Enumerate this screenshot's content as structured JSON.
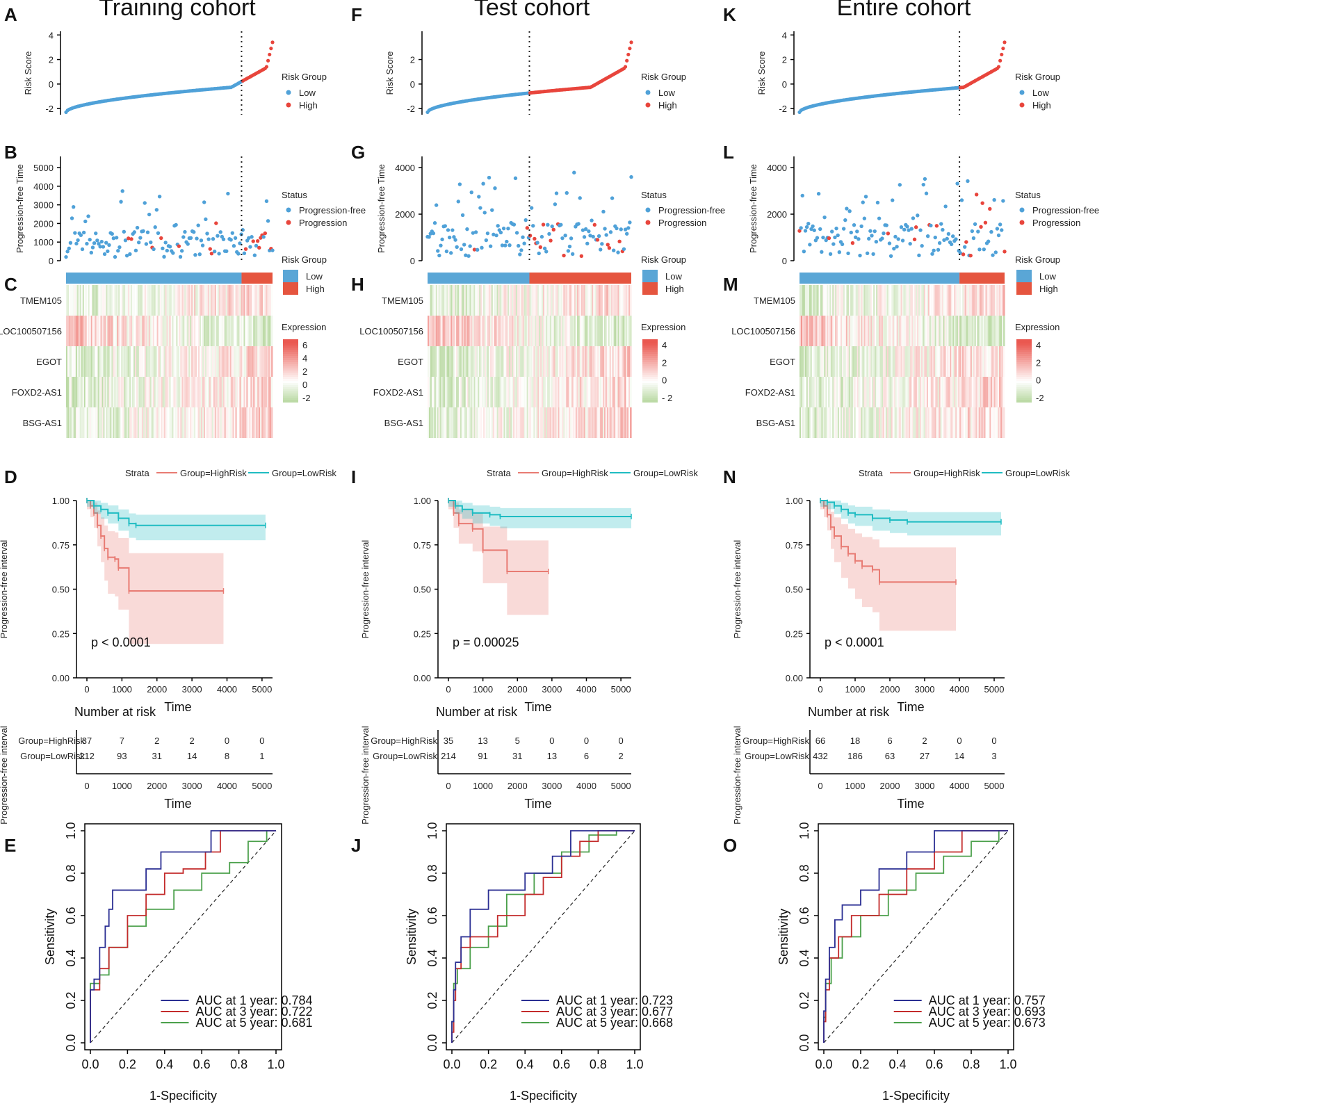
{
  "panel_letters": {
    "train": [
      "A",
      "B",
      "C",
      "D",
      "E"
    ],
    "test": [
      "F",
      "G",
      "H",
      "I",
      "J"
    ],
    "entire": [
      "K",
      "L",
      "M",
      "N",
      "O"
    ]
  },
  "colors": {
    "low": "#4fa1d8",
    "high": "#e8453c",
    "hr": "#e87b73",
    "lr": "#1fbcc2",
    "lowbar": "#5aa6d6",
    "highbar": "#e5553f",
    "roc1": "#2b2f93",
    "roc3": "#c32b2b",
    "roc5": "#4ba04b"
  },
  "chart_data": [
    {
      "type": "composite",
      "cohort": "train",
      "title": "Training cohort",
      "risk_score": {
        "ylabel": "Risk Score",
        "yticks": [
          -2,
          0,
          2,
          4
        ],
        "cutoff_frac": 0.85,
        "legend_title": "Risk Group",
        "legend_items": [
          "Low",
          "High"
        ]
      },
      "pfs_time": {
        "ylabel": "Progression-free Time",
        "yticks": [
          0,
          1000,
          2000,
          3000,
          4000,
          5000
        ],
        "legend_title": "Status",
        "legend_items": [
          "Progression-free",
          "Progression"
        ]
      },
      "heatmap": {
        "genes": [
          "TMEM105",
          "LOC100507156",
          "EGOT",
          "FOXD2-AS1",
          "BSG-AS1"
        ],
        "group_legend_title": "Risk Group",
        "group_items": [
          "Low",
          "High"
        ],
        "expr_title": "Expression",
        "expr_ticks": [
          "6",
          "4",
          "2",
          "0",
          "-2"
        ]
      },
      "km": {
        "strata_label": "Strata",
        "strata": [
          "Group=HighRisk",
          "Group=LowRisk"
        ],
        "ylabel": "Progression-free interval",
        "xlabel": "Time",
        "yticks": [
          "1.00",
          "0.75",
          "0.50",
          "0.25",
          "0.00"
        ],
        "xticks": [
          0,
          1000,
          2000,
          3000,
          4000,
          5000
        ],
        "pvalue": "p < 0.0001",
        "high": [
          [
            0,
            1
          ],
          [
            100,
            0.97
          ],
          [
            200,
            0.93
          ],
          [
            300,
            0.86
          ],
          [
            400,
            0.8
          ],
          [
            500,
            0.73
          ],
          [
            600,
            0.68
          ],
          [
            800,
            0.67
          ],
          [
            900,
            0.62
          ],
          [
            1200,
            0.49
          ],
          [
            3900,
            0.49
          ]
        ],
        "low": [
          [
            0,
            1
          ],
          [
            200,
            0.97
          ],
          [
            400,
            0.95
          ],
          [
            600,
            0.93
          ],
          [
            900,
            0.9
          ],
          [
            1200,
            0.87
          ],
          [
            1400,
            0.86
          ],
          [
            5100,
            0.86
          ]
        ]
      },
      "risk_table": {
        "title": "Number at risk",
        "rows": [
          {
            "label": "Group=HighRisk",
            "values": [
              "37",
              "7",
              "2",
              "2",
              "0",
              "0"
            ]
          },
          {
            "label": "Group=LowRisk",
            "values": [
              "212",
              "93",
              "31",
              "14",
              "8",
              "1"
            ]
          }
        ]
      },
      "roc": {
        "xlabel": "1-Specificity",
        "ylabel": "Sensitivity",
        "ticks": [
          "0.0",
          "0.2",
          "0.4",
          "0.6",
          "0.8",
          "1.0"
        ],
        "legend": [
          "AUC at 1 year: 0.784",
          "AUC at 3 year: 0.722",
          "AUC at 5 year: 0.681"
        ],
        "y1": [
          [
            0,
            0
          ],
          [
            0,
            0.2
          ],
          [
            0.02,
            0.25
          ],
          [
            0.05,
            0.3
          ],
          [
            0.08,
            0.45
          ],
          [
            0.1,
            0.55
          ],
          [
            0.12,
            0.63
          ],
          [
            0.3,
            0.72
          ],
          [
            0.38,
            0.82
          ],
          [
            0.65,
            0.9
          ],
          [
            0.66,
            1
          ],
          [
            1,
            1
          ]
        ],
        "y3": [
          [
            0,
            0
          ],
          [
            0,
            0.15
          ],
          [
            0.05,
            0.25
          ],
          [
            0.1,
            0.35
          ],
          [
            0.2,
            0.45
          ],
          [
            0.3,
            0.6
          ],
          [
            0.4,
            0.7
          ],
          [
            0.5,
            0.8
          ],
          [
            0.62,
            0.82
          ],
          [
            0.7,
            0.9
          ],
          [
            0.8,
            1
          ],
          [
            1,
            1
          ]
        ],
        "y5": [
          [
            0,
            0
          ],
          [
            0,
            0.18
          ],
          [
            0.05,
            0.28
          ],
          [
            0.1,
            0.32
          ],
          [
            0.2,
            0.45
          ],
          [
            0.3,
            0.55
          ],
          [
            0.45,
            0.63
          ],
          [
            0.6,
            0.72
          ],
          [
            0.75,
            0.8
          ],
          [
            0.85,
            0.85
          ],
          [
            0.95,
            0.95
          ],
          [
            1,
            1
          ]
        ]
      }
    },
    {
      "type": "composite",
      "cohort": "test",
      "title": "Test cohort",
      "risk_score": {
        "ylabel": "Risk Score",
        "yticks": [
          -2,
          0,
          2
        ],
        "cutoff_frac": 0.5,
        "legend_title": "Risk Group",
        "legend_items": [
          "Low",
          "High"
        ]
      },
      "pfs_time": {
        "ylabel": "Progression-free Time",
        "yticks": [
          0,
          2000,
          4000
        ],
        "legend_title": "Status",
        "legend_items": [
          "Progression-free",
          "Progression"
        ]
      },
      "heatmap": {
        "genes": [
          "TMEM105",
          "LOC100507156",
          "EGOT",
          "FOXD2-AS1",
          "BSG-AS1"
        ],
        "group_legend_title": "Risk Group",
        "group_items": [
          "Low",
          "High"
        ],
        "expr_title": "Expression",
        "expr_ticks": [
          "4",
          "2",
          "0",
          "- 2"
        ]
      },
      "km": {
        "strata_label": "Strata",
        "strata": [
          "Group=HighRisk",
          "Group=LowRisk"
        ],
        "ylabel": "Progression-free interval",
        "xlabel": "Time",
        "yticks": [
          "1.00",
          "0.75",
          "0.50",
          "0.25",
          "0.00"
        ],
        "xticks": [
          0,
          1000,
          2000,
          3000,
          4000,
          5000
        ],
        "pvalue": "p = 0.00025",
        "high": [
          [
            0,
            1
          ],
          [
            150,
            0.93
          ],
          [
            300,
            0.87
          ],
          [
            700,
            0.84
          ],
          [
            1000,
            0.72
          ],
          [
            1700,
            0.6
          ],
          [
            2900,
            0.6
          ]
        ],
        "low": [
          [
            0,
            1
          ],
          [
            200,
            0.97
          ],
          [
            400,
            0.95
          ],
          [
            700,
            0.93
          ],
          [
            1200,
            0.92
          ],
          [
            1500,
            0.91
          ],
          [
            5300,
            0.91
          ]
        ]
      },
      "risk_table": {
        "title": "Number at risk",
        "rows": [
          {
            "label": "Group=HighRisk",
            "values": [
              "35",
              "13",
              "5",
              "0",
              "0",
              "0"
            ]
          },
          {
            "label": "Group=LowRisk",
            "values": [
              "214",
              "91",
              "31",
              "13",
              "6",
              "2"
            ]
          }
        ]
      },
      "roc": {
        "xlabel": "1-Specificity",
        "ylabel": "Sensitivity",
        "ticks": [
          "0.0",
          "0.2",
          "0.4",
          "0.6",
          "0.8",
          "1.0"
        ],
        "legend": [
          "AUC at 1 year: 0.723",
          "AUC at 3 year: 0.677",
          "AUC at 5 year: 0.668"
        ],
        "y1": [
          [
            0,
            0
          ],
          [
            0.01,
            0.1
          ],
          [
            0.02,
            0.25
          ],
          [
            0.05,
            0.38
          ],
          [
            0.1,
            0.5
          ],
          [
            0.2,
            0.63
          ],
          [
            0.4,
            0.72
          ],
          [
            0.55,
            0.8
          ],
          [
            0.65,
            0.88
          ],
          [
            0.75,
            1
          ],
          [
            1,
            1
          ]
        ],
        "y3": [
          [
            0,
            0
          ],
          [
            0.01,
            0.05
          ],
          [
            0.02,
            0.2
          ],
          [
            0.05,
            0.35
          ],
          [
            0.1,
            0.45
          ],
          [
            0.25,
            0.5
          ],
          [
            0.4,
            0.6
          ],
          [
            0.5,
            0.7
          ],
          [
            0.6,
            0.78
          ],
          [
            0.7,
            0.88
          ],
          [
            0.8,
            0.95
          ],
          [
            1,
            1
          ]
        ],
        "y5": [
          [
            0,
            0
          ],
          [
            0.01,
            0.1
          ],
          [
            0.03,
            0.28
          ],
          [
            0.1,
            0.35
          ],
          [
            0.2,
            0.45
          ],
          [
            0.3,
            0.55
          ],
          [
            0.45,
            0.7
          ],
          [
            0.6,
            0.8
          ],
          [
            0.75,
            0.9
          ],
          [
            0.9,
            0.98
          ],
          [
            1,
            1
          ]
        ]
      }
    },
    {
      "type": "composite",
      "cohort": "entire",
      "title": "Entire cohort",
      "risk_score": {
        "ylabel": "Risk Score",
        "yticks": [
          -2,
          0,
          2,
          4
        ],
        "cutoff_frac": 0.78,
        "legend_title": "Risk  Group",
        "legend_items": [
          "Low",
          "High"
        ]
      },
      "pfs_time": {
        "ylabel": "Progression-free Time",
        "yticks": [
          0,
          2000,
          4000
        ],
        "legend_title": "Status",
        "legend_items": [
          "Progression-free",
          "Progression"
        ]
      },
      "heatmap": {
        "genes": [
          "TMEM105",
          "LOC100507156",
          "EGOT",
          "FOXD2-AS1",
          "BSG-AS1"
        ],
        "group_legend_title": "Risk Group",
        "group_items": [
          "Low",
          "High"
        ],
        "expr_title": "Expression",
        "expr_ticks": [
          "4",
          "2",
          "0",
          "-2"
        ]
      },
      "km": {
        "strata_label": "Strata",
        "strata": [
          "Group=HighRisk",
          "Group=LowRisk"
        ],
        "ylabel": "Progression-free interval",
        "xlabel": "Time",
        "yticks": [
          "1.00",
          "0.75",
          "0.50",
          "0.25",
          "0.00"
        ],
        "xticks": [
          0,
          1000,
          2000,
          3000,
          4000,
          5000
        ],
        "pvalue": "p < 0.0001",
        "high": [
          [
            0,
            1
          ],
          [
            100,
            0.97
          ],
          [
            200,
            0.92
          ],
          [
            300,
            0.85
          ],
          [
            400,
            0.8
          ],
          [
            600,
            0.74
          ],
          [
            800,
            0.7
          ],
          [
            1000,
            0.66
          ],
          [
            1200,
            0.63
          ],
          [
            1500,
            0.61
          ],
          [
            1700,
            0.54
          ],
          [
            3900,
            0.54
          ]
        ],
        "low": [
          [
            0,
            1
          ],
          [
            200,
            0.99
          ],
          [
            400,
            0.97
          ],
          [
            600,
            0.95
          ],
          [
            800,
            0.93
          ],
          [
            1000,
            0.92
          ],
          [
            1500,
            0.9
          ],
          [
            2000,
            0.89
          ],
          [
            2500,
            0.88
          ],
          [
            5200,
            0.88
          ]
        ]
      },
      "risk_table": {
        "title": "Number at risk",
        "rows": [
          {
            "label": "Group=HighRisk",
            "values": [
              "66",
              "18",
              "6",
              "2",
              "0",
              "0"
            ]
          },
          {
            "label": "Group=LowRisk",
            "values": [
              "432",
              "186",
              "63",
              "27",
              "14",
              "3"
            ]
          }
        ]
      },
      "roc": {
        "xlabel": "1-Specificity",
        "ylabel": "Sensitivity",
        "ticks": [
          "0.0",
          "0.2",
          "0.4",
          "0.6",
          "0.8",
          "1.0"
        ],
        "legend": [
          "AUC at 1 year: 0.757",
          "AUC at 3 year: 0.693",
          "AUC at 5 year: 0.673"
        ],
        "y1": [
          [
            0,
            0
          ],
          [
            0.01,
            0.15
          ],
          [
            0.03,
            0.3
          ],
          [
            0.06,
            0.45
          ],
          [
            0.1,
            0.58
          ],
          [
            0.2,
            0.65
          ],
          [
            0.3,
            0.72
          ],
          [
            0.45,
            0.82
          ],
          [
            0.6,
            0.9
          ],
          [
            0.72,
            1
          ],
          [
            1,
            1
          ]
        ],
        "y3": [
          [
            0,
            0
          ],
          [
            0.01,
            0.1
          ],
          [
            0.03,
            0.25
          ],
          [
            0.08,
            0.4
          ],
          [
            0.15,
            0.5
          ],
          [
            0.3,
            0.6
          ],
          [
            0.45,
            0.7
          ],
          [
            0.6,
            0.82
          ],
          [
            0.75,
            0.9
          ],
          [
            0.8,
            1
          ],
          [
            1,
            1
          ]
        ],
        "y5": [
          [
            0,
            0
          ],
          [
            0.01,
            0.12
          ],
          [
            0.04,
            0.28
          ],
          [
            0.1,
            0.4
          ],
          [
            0.2,
            0.5
          ],
          [
            0.35,
            0.6
          ],
          [
            0.5,
            0.72
          ],
          [
            0.65,
            0.8
          ],
          [
            0.8,
            0.88
          ],
          [
            0.95,
            0.95
          ],
          [
            1,
            1
          ]
        ]
      }
    }
  ]
}
